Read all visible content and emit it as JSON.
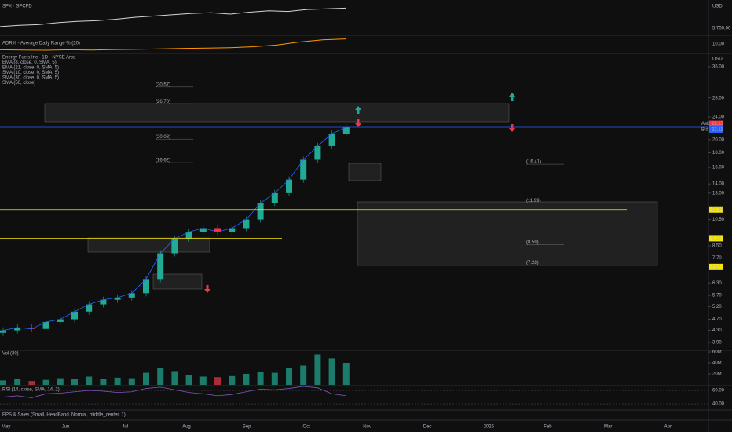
{
  "spx": {
    "title": "SPX · SPCFD",
    "currency": "USD",
    "tick": "5,700.00",
    "values": [
      5.2,
      5.4,
      5.5,
      5.8,
      6.0,
      6.1,
      6.3,
      6.6,
      6.8,
      7.0,
      7.2,
      7.3,
      7.1,
      7.4,
      7.6,
      7.5,
      7.8,
      7.9,
      8.0
    ],
    "ylim": [
      4,
      9
    ]
  },
  "adr": {
    "title": "ADR% - Average Daily Range % (20)",
    "tick": "10.00",
    "values": [
      5.2,
      5.1,
      5.0,
      5.2,
      5.1,
      5.3,
      5.4,
      5.6,
      5.8,
      5.9,
      6.1,
      6.5,
      7.2,
      8.5,
      9.4,
      9.8
    ],
    "ylim": [
      4,
      11
    ]
  },
  "main": {
    "legend": [
      "Energy Fuels Inc · 1D · NYSE Arca",
      "EMA (8, close, 0, SMA, 5)",
      "EMA (21, close, 0, SMA, 5)",
      "SMA (10, close, 0, SMA, 5)",
      "SMA (30, close, 0, SMA, 5)",
      "SMA (50, close)"
    ],
    "currency": "USD",
    "ylim": [
      3.9,
      36
    ],
    "yticks": [
      {
        "value": 36,
        "label": "36.00"
      },
      {
        "value": 28,
        "label": "28.00"
      },
      {
        "value": 24,
        "label": "24.00"
      },
      {
        "value": 20,
        "label": "20.00"
      },
      {
        "value": 18,
        "label": "18.00"
      },
      {
        "value": 16,
        "label": "16.00"
      },
      {
        "value": 14,
        "label": "14.00"
      },
      {
        "value": 13,
        "label": "13.00"
      },
      {
        "value": 10.5,
        "label": "10.50"
      },
      {
        "value": 8.5,
        "label": "8.50"
      },
      {
        "value": 7.7,
        "label": "7.70"
      },
      {
        "value": 6.3,
        "label": "6.30"
      },
      {
        "value": 5.7,
        "label": "5.70"
      },
      {
        "value": 5.2,
        "label": "5.20"
      },
      {
        "value": 4.7,
        "label": "4.70"
      },
      {
        "value": 4.3,
        "label": "4.30"
      },
      {
        "value": 3.9,
        "label": "3.90"
      }
    ],
    "closes": [
      4.3,
      4.4,
      4.35,
      4.6,
      4.7,
      5.0,
      5.3,
      5.5,
      5.6,
      5.8,
      6.5,
      8.0,
      9.0,
      9.5,
      9.8,
      9.5,
      9.8,
      10.5,
      12.0,
      13.0,
      14.5,
      17.0,
      19.0,
      21.0,
      22.11
    ],
    "levels": [
      {
        "value": 22.17,
        "label": "22.17",
        "tag": "Ask",
        "color": "#f23645"
      },
      {
        "value": 22.11,
        "label": "22.11",
        "tag": "Bid",
        "color": "#2962ff"
      },
      {
        "value": 11.39,
        "label": "11.39",
        "color": "#f5e50a"
      },
      {
        "value": 9.03,
        "label": "9.03",
        "color": "#f5e50a"
      },
      {
        "value": 7.17,
        "label": "7.17",
        "color": "#f5e50a"
      }
    ],
    "annotations": [
      {
        "value": 30.57,
        "label": "(30.57)"
      },
      {
        "value": 26.7,
        "label": "(26.70)"
      },
      {
        "value": 20.08,
        "label": "(20.08)"
      },
      {
        "value": 16.62,
        "label": "(16.62)"
      },
      {
        "value": 16.41,
        "label": "(16.41)"
      },
      {
        "value": 11.99,
        "label": "(11.99)"
      },
      {
        "value": 8.59,
        "label": "(8.59)"
      },
      {
        "value": 7.28,
        "label": "(7.28)"
      }
    ]
  },
  "vol": {
    "title": "Vol (30)",
    "ylim": [
      0,
      60
    ],
    "yticks": [
      {
        "value": 60,
        "label": "60M"
      },
      {
        "value": 40,
        "label": "40M"
      },
      {
        "value": 20,
        "label": "20M"
      }
    ],
    "values": [
      8,
      10,
      7,
      9,
      12,
      11,
      15,
      10,
      13,
      12,
      22,
      30,
      25,
      18,
      15,
      14,
      16,
      20,
      24,
      22,
      30,
      35,
      55,
      48,
      40
    ]
  },
  "rsi": {
    "title": "RSI (14, close, SMA, 14, 2)",
    "ylim": [
      33,
      66
    ],
    "yticks": [
      {
        "value": 60,
        "label": "60.00"
      },
      {
        "value": 40,
        "label": "40.00"
      }
    ],
    "values": [
      50,
      52,
      49,
      55,
      56,
      58,
      60,
      59,
      57,
      58,
      63,
      65,
      61,
      57,
      55,
      52,
      54,
      58,
      62,
      61,
      63,
      66,
      64,
      55,
      52
    ]
  },
  "eps": {
    "title": "EPS & Sales (Small, HeadBand, Normal, middle_center, 1)"
  },
  "time_axis": [
    "May",
    "Jun",
    "Jul",
    "Aug",
    "Sep",
    "Oct",
    "Nov",
    "Dec",
    "2026",
    "Feb",
    "Mar",
    "Apr"
  ]
}
